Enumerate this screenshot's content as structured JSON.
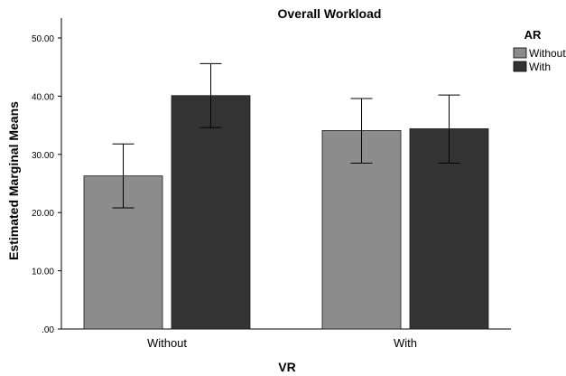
{
  "chart_data": {
    "type": "bar",
    "title": "Overall Workload",
    "xlabel": "VR",
    "ylabel": "Estimated Marginal Means",
    "categories": [
      "Without",
      "With"
    ],
    "series": [
      {
        "name": "Without",
        "color": "#8c8c8c",
        "values": [
          26.3,
          34.1
        ],
        "error_low": [
          20.8,
          28.5
        ],
        "error_high": [
          31.8,
          39.6
        ]
      },
      {
        "name": "With",
        "color": "#333333",
        "values": [
          40.1,
          34.4
        ],
        "error_low": [
          34.6,
          28.5
        ],
        "error_high": [
          45.6,
          40.2
        ]
      }
    ],
    "yticks": [
      ".00",
      "10.00",
      "20.00",
      "30.00",
      "40.00",
      "50.00"
    ],
    "ylim": [
      0,
      50
    ],
    "legend": {
      "title": "AR",
      "placement": "top-right"
    },
    "grid": false
  }
}
